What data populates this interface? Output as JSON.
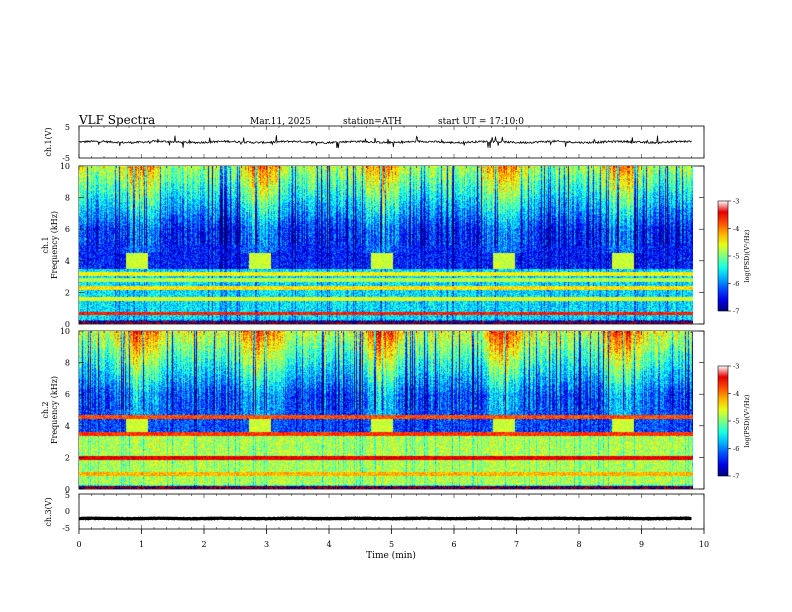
{
  "header": {
    "title": "VLF  Spectra",
    "date": "Mar.11, 2025",
    "station": "station=ATH",
    "start": "start  UT  =   17:10:0"
  },
  "chart_data": [
    {
      "type": "line",
      "panel": "ch1-waveform",
      "ylabel": "ch.1(V)",
      "ylim": [
        -5,
        5
      ],
      "yticks": [
        "5",
        "-5"
      ],
      "x_range_min": [
        0,
        9.8
      ],
      "baseline_v": 0.0,
      "noise_amplitude_v": 0.6,
      "spike_amplitude_v": 2.0
    },
    {
      "type": "heatmap",
      "panel": "ch1-spectrogram",
      "ylabel": "ch.1\nFrequency  (kHz)",
      "ylim": [
        0,
        10
      ],
      "yticks": [
        "0",
        "2",
        "4",
        "6",
        "8",
        "10"
      ],
      "x_range_min": [
        0,
        9.8
      ],
      "colorbar": {
        "label": "log(PSD)(V²/Hz)",
        "range": [
          -7,
          -3
        ],
        "ticks": [
          "-3",
          "-4",
          "-5",
          "-6",
          "-7"
        ]
      },
      "bursts": [
        {
          "t_start_min": 0.75,
          "t_end_min": 1.1,
          "f_low_khz": 3.5,
          "f_high_khz": 4.5
        },
        {
          "t_start_min": 2.7,
          "t_end_min": 3.05,
          "f_low_khz": 3.5,
          "f_high_khz": 4.5
        },
        {
          "t_start_min": 4.65,
          "t_end_min": 5.0,
          "f_low_khz": 3.5,
          "f_high_khz": 4.5
        },
        {
          "t_start_min": 6.6,
          "t_end_min": 6.95,
          "f_low_khz": 3.5,
          "f_high_khz": 4.5
        },
        {
          "t_start_min": 8.5,
          "t_end_min": 8.85,
          "f_low_khz": 3.5,
          "f_high_khz": 4.5
        }
      ],
      "bands_khz": [
        {
          "f_khz": 0.7,
          "level_log_psd": -3.6
        },
        {
          "f_khz": 1.6,
          "level_log_psd": -4.6
        },
        {
          "f_khz": 2.3,
          "level_log_psd": -4.4
        },
        {
          "f_khz": 2.8,
          "level_log_psd": -4.8
        },
        {
          "f_khz": 3.2,
          "level_log_psd": -4.5
        }
      ],
      "background_log_psd": {
        "low": -5.6,
        "mid": -6.4,
        "high": -4.8
      }
    },
    {
      "type": "heatmap",
      "panel": "ch2-spectrogram",
      "ylabel": "ch.2\nFrequency  (kHz)",
      "ylim": [
        0,
        10
      ],
      "yticks": [
        "0",
        "2",
        "4",
        "6",
        "8",
        "10"
      ],
      "x_range_min": [
        0,
        9.8
      ],
      "colorbar": {
        "label": "log(PSD)(V²/Hz)",
        "range": [
          -7,
          -3
        ],
        "ticks": [
          "-3",
          "-4",
          "-5",
          "-6",
          "-7"
        ]
      },
      "bursts": [
        {
          "t_start_min": 0.75,
          "t_end_min": 1.1,
          "f_low_khz": 3.5,
          "f_high_khz": 4.5
        },
        {
          "t_start_min": 2.7,
          "t_end_min": 3.05,
          "f_low_khz": 3.5,
          "f_high_khz": 4.5
        },
        {
          "t_start_min": 4.65,
          "t_end_min": 5.0,
          "f_low_khz": 3.5,
          "f_high_khz": 4.5
        },
        {
          "t_start_min": 6.6,
          "t_end_min": 6.95,
          "f_low_khz": 3.5,
          "f_high_khz": 4.5
        },
        {
          "t_start_min": 8.5,
          "t_end_min": 8.85,
          "f_low_khz": 3.5,
          "f_high_khz": 4.5
        }
      ],
      "bands_khz": [
        {
          "f_khz": 2.0,
          "level_log_psd": -3.4
        },
        {
          "f_khz": 3.5,
          "level_log_psd": -3.7
        },
        {
          "f_khz": 4.6,
          "level_log_psd": -3.8
        },
        {
          "f_khz": 1.0,
          "level_log_psd": -4.2
        }
      ],
      "background_log_psd": {
        "low": -4.8,
        "mid": -6.2,
        "high": -4.6
      }
    },
    {
      "type": "line",
      "panel": "ch3-waveform",
      "ylabel": "ch.3(V)",
      "ylim": [
        -5,
        5
      ],
      "yticks": [
        "5",
        "0",
        "-5"
      ],
      "x_range_min": [
        0,
        9.8
      ],
      "baseline_v": -2.0,
      "noise_amplitude_v": 0.15,
      "spike_amplitude_v": 0.0
    }
  ],
  "x_axis": {
    "label": "Time  (min)",
    "range": [
      0,
      10
    ],
    "ticks": [
      "0",
      "1",
      "2",
      "3",
      "4",
      "5",
      "6",
      "7",
      "8",
      "9",
      "10"
    ]
  }
}
